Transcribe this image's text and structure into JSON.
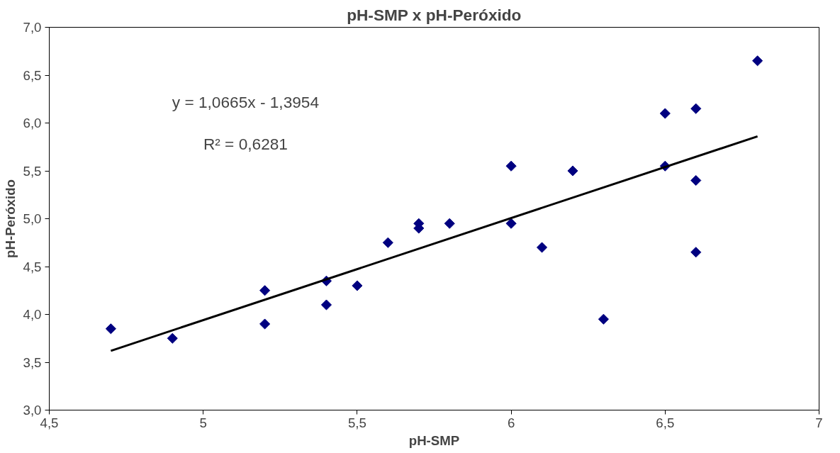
{
  "chart_data": {
    "type": "scatter",
    "title": "pH-SMP x pH-Peróxido",
    "xlabel": "pH-SMP",
    "ylabel": "pH-Peróxido",
    "annotations": [
      "y = 1,0665x - 1,3954",
      "R² = 0,6281"
    ],
    "xlim": [
      4.5,
      7
    ],
    "ylim": [
      3.0,
      7.0
    ],
    "xticks": [
      {
        "value": 4.5,
        "label": "4,5"
      },
      5,
      {
        "value": 5.5,
        "label": "5,5"
      },
      6,
      {
        "value": 6.5,
        "label": "6,5"
      },
      7
    ],
    "yticks": [
      {
        "value": 3.0,
        "label": "3,0"
      },
      {
        "value": 3.5,
        "label": "3,5"
      },
      {
        "value": 4.0,
        "label": "4,0"
      },
      {
        "value": 4.5,
        "label": "4,5"
      },
      {
        "value": 5.0,
        "label": "5,0"
      },
      {
        "value": 5.5,
        "label": "5,5"
      },
      {
        "value": 6.0,
        "label": "6,0"
      },
      {
        "value": 6.5,
        "label": "6,5"
      },
      {
        "value": 7.0,
        "label": "7,0"
      }
    ],
    "grid": false,
    "marker": "diamond",
    "series": [
      {
        "color": "#000080",
        "x": [
          4.7,
          4.9,
          5.2,
          5.2,
          5.4,
          5.4,
          5.5,
          5.6,
          5.7,
          5.7,
          5.8,
          6.0,
          6.0,
          6.1,
          6.2,
          6.3,
          6.5,
          6.5,
          6.6,
          6.6,
          6.6,
          6.8
        ],
        "values": [
          3.85,
          3.75,
          4.25,
          3.9,
          4.35,
          4.1,
          4.3,
          4.75,
          4.95,
          4.9,
          4.95,
          5.55,
          4.95,
          4.7,
          5.5,
          3.95,
          6.1,
          5.55,
          6.15,
          5.4,
          4.65,
          6.65
        ]
      },
      {
        "type": "line",
        "color": "#000000",
        "marker": "none",
        "line_style": "solid",
        "x": [
          4.7,
          6.8
        ],
        "values": [
          3.62,
          5.86
        ]
      }
    ]
  }
}
